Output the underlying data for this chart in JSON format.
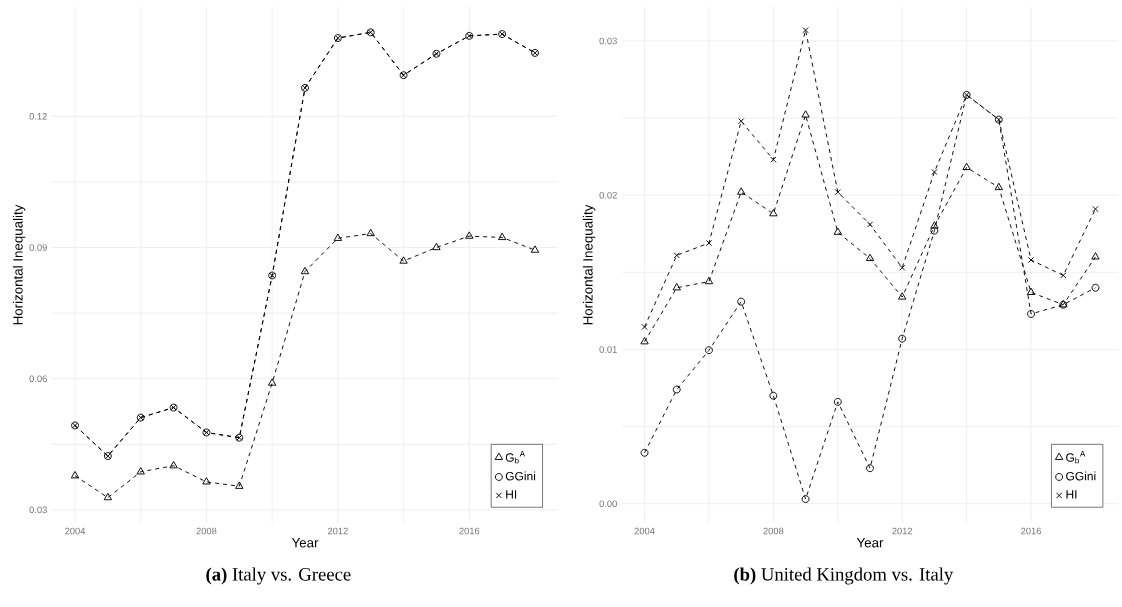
{
  "chart_data": [
    {
      "type": "line",
      "title": "**(a)** Italy vs. Greece",
      "xlabel": "Year",
      "ylabel": "Horizontal Inequality",
      "x": [
        2004,
        2005,
        2006,
        2007,
        2008,
        2009,
        2010,
        2011,
        2012,
        2013,
        2014,
        2015,
        2016,
        2017,
        2018
      ],
      "series": [
        {
          "name": "G$_{b}$$^{A}$",
          "color": "#000000",
          "marker": "triangle",
          "values": [
            0.0378,
            0.0328,
            0.0387,
            0.0401,
            0.0364,
            0.0354,
            0.059,
            0.0845,
            0.0921,
            0.0932,
            0.0869,
            0.09,
            0.0926,
            0.0923,
            0.0894
          ]
        },
        {
          "name": "GGini",
          "color": "#000000",
          "marker": "circle",
          "values": [
            0.0493,
            0.0423,
            0.0511,
            0.0534,
            0.0477,
            0.0465,
            0.0836,
            0.1265,
            0.1379,
            0.1392,
            0.1294,
            0.1343,
            0.1384,
            0.1388,
            0.1345
          ]
        },
        {
          "name": "HI",
          "color": "#000000",
          "marker": "cross",
          "values": [
            0.0493,
            0.0423,
            0.0511,
            0.0534,
            0.0477,
            0.0465,
            0.0836,
            0.1265,
            0.1379,
            0.1392,
            0.1294,
            0.1343,
            0.1384,
            0.1388,
            0.1345
          ]
        }
      ],
      "xlim": [
        2003.3,
        2018.7
      ],
      "ylim": [
        0.027,
        0.145
      ],
      "xticks": [
        2004,
        2008,
        2012,
        2016
      ],
      "yticks": [
        0.03,
        0.06,
        0.09,
        0.12
      ],
      "grid": true,
      "legend": "bottom right",
      "line_style": "dashed"
    },
    {
      "type": "line",
      "title": "**(b)** United Kingdom vs. Italy",
      "xlabel": "Year",
      "ylabel": "Horizontal Inequality",
      "x": [
        2004,
        2005,
        2006,
        2007,
        2008,
        2009,
        2010,
        2011,
        2012,
        2013,
        2014,
        2015,
        2016,
        2017,
        2018
      ],
      "series": [
        {
          "name": "G$_{b}$$^{A}$",
          "color": "#000000",
          "marker": "triangle",
          "values": [
            0.0105,
            0.014,
            0.0144,
            0.0202,
            0.0188,
            0.0252,
            0.0176,
            0.0159,
            0.0134,
            0.018,
            0.0218,
            0.0205,
            0.0137,
            0.0129,
            0.016
          ]
        },
        {
          "name": "GGini",
          "color": "#000000",
          "marker": "circle",
          "values": [
            0.0033,
            0.0074,
            0.00995,
            0.0131,
            0.007,
            0.0003,
            0.0066,
            0.0023,
            0.0107,
            0.0177,
            0.0265,
            0.0249,
            0.0123,
            0.0129,
            0.014
          ]
        },
        {
          "name": "HI",
          "color": "#000000",
          "marker": "cross",
          "values": [
            0.01146,
            0.0161,
            0.0169,
            0.0248,
            0.0223,
            0.0307,
            0.0202,
            0.0181,
            0.0153,
            0.0215,
            0.0265,
            0.0249,
            0.0158,
            0.0148,
            0.0191
          ]
        }
      ],
      "xlim": [
        2003.3,
        2018.7
      ],
      "ylim": [
        -0.00125,
        0.0322
      ],
      "xticks": [
        2004,
        2008,
        2012,
        2016
      ],
      "yticks": [
        {
          "value": 0,
          "label": "0.00"
        },
        {
          "value": 0.01,
          "label": "0.01"
        },
        {
          "value": 0.02,
          "label": "0.02"
        },
        {
          "value": 0.03,
          "label": "0.03"
        }
      ],
      "grid": true,
      "legend": "bottom right",
      "line_style": "dashed"
    }
  ]
}
